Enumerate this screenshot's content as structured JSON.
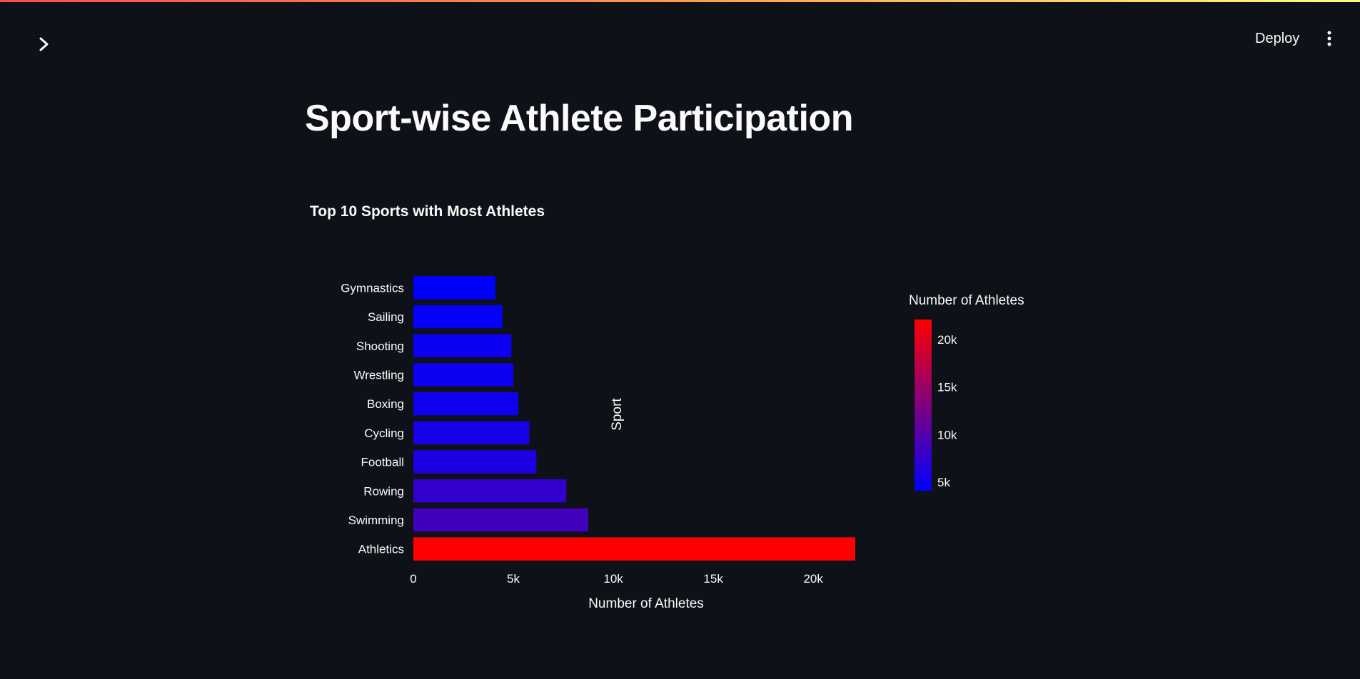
{
  "header": {
    "deploy_label": "Deploy"
  },
  "page": {
    "title": "Sport-wise Athlete Participation"
  },
  "colors": {
    "background": "#0e1117",
    "text": "#fafafa",
    "scale_low": "#0000ff",
    "scale_high": "#ff0000"
  },
  "icons": {
    "sidebar_toggle": "chevron-right-icon",
    "menu": "vertical-dots-icon"
  },
  "chart_data": {
    "type": "bar",
    "orientation": "horizontal",
    "title": "Top 10 Sports with Most Athletes",
    "xlabel": "Number of Athletes",
    "ylabel": "Sport",
    "categories": [
      "Athletics",
      "Swimming",
      "Rowing",
      "Football",
      "Cycling",
      "Boxing",
      "Wrestling",
      "Shooting",
      "Sailing",
      "Gymnastics"
    ],
    "values": [
      22100,
      8750,
      7650,
      6150,
      5800,
      5250,
      5000,
      4900,
      4450,
      4100
    ],
    "xlim": [
      0,
      22100
    ],
    "xticks": [
      0,
      5000,
      10000,
      15000,
      20000
    ],
    "xtick_labels": [
      "0",
      "5k",
      "10k",
      "15k",
      "20k"
    ],
    "grid": false,
    "colorbar": {
      "title": "Number of Athletes",
      "range": [
        4100,
        22100
      ],
      "ticks": [
        5000,
        10000,
        15000,
        20000
      ],
      "tick_labels": [
        "5k",
        "10k",
        "15k",
        "20k"
      ],
      "colors": [
        "#0000ff",
        "#ff0000"
      ],
      "placement": "right"
    }
  }
}
